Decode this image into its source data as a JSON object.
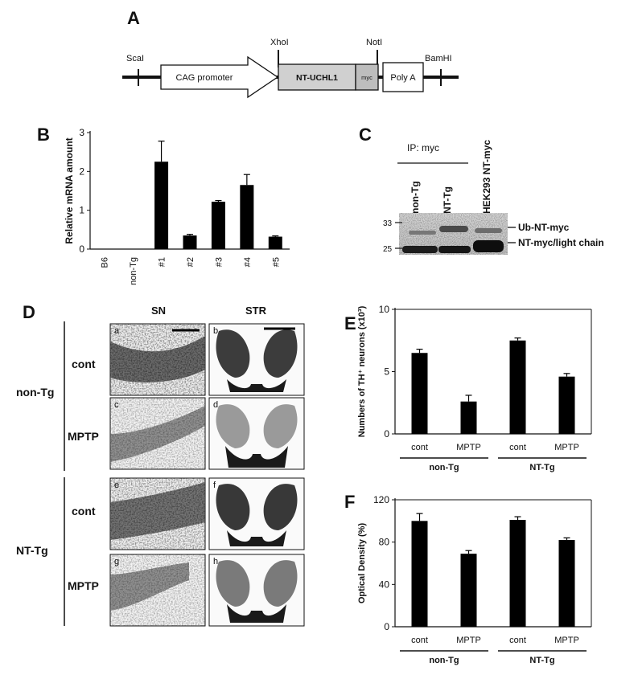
{
  "panel_letters": {
    "A": "A",
    "B": "B",
    "C": "C",
    "D": "D",
    "E": "E",
    "F": "F"
  },
  "construct": {
    "sites": [
      "ScaI",
      "XhoI",
      "NotI",
      "BamHI"
    ],
    "promoter": "CAG promoter",
    "gene": "NT-UCHL1",
    "tag": "myc",
    "polyA": "Poly A"
  },
  "blot": {
    "header": "IP: myc",
    "lanes": [
      "non-Tg",
      "NT-Tg",
      "HEK293 NT-myc"
    ],
    "markers": [
      "33",
      "25"
    ],
    "bands": [
      "Ub-NT-myc",
      "NT-myc/light chain"
    ]
  },
  "histology": {
    "columns": [
      "SN",
      "STR"
    ],
    "groups": [
      "non-Tg",
      "NT-Tg"
    ],
    "treatments": [
      "cont",
      "MPTP",
      "cont",
      "MPTP"
    ],
    "letters": [
      "a",
      "b",
      "c",
      "d",
      "e",
      "f",
      "g",
      "h"
    ]
  },
  "chart_data": [
    {
      "panel": "B",
      "type": "bar",
      "categories": [
        "B6",
        "non-Tg",
        "#1",
        "#2",
        "#3",
        "#4",
        "#5"
      ],
      "values": [
        0,
        0,
        2.25,
        0.35,
        1.22,
        1.65,
        0.32
      ],
      "errors": [
        0,
        0,
        0.53,
        0.03,
        0.03,
        0.27,
        0.02
      ],
      "ylabel": "Relative mRNA amount",
      "ylim": [
        0,
        3
      ],
      "yticks": [
        "0",
        "1",
        "2",
        "3"
      ],
      "grid": false
    },
    {
      "panel": "E",
      "type": "bar",
      "categories": [
        "cont",
        "MPTP",
        "cont",
        "MPTP"
      ],
      "groups": [
        "non-Tg",
        "NT-Tg"
      ],
      "values": [
        6.5,
        2.6,
        7.5,
        4.6
      ],
      "errors": [
        0.3,
        0.5,
        0.2,
        0.25
      ],
      "ylabel": "Numbers of TH⁺ neurons (x10³)",
      "ylim": [
        0,
        10
      ],
      "yticks": [
        "0",
        "5",
        "10"
      ],
      "grid": false
    },
    {
      "panel": "F",
      "type": "bar",
      "categories": [
        "cont",
        "MPTP",
        "cont",
        "MPTP"
      ],
      "groups": [
        "non-Tg",
        "NT-Tg"
      ],
      "values": [
        100,
        69,
        101,
        82
      ],
      "errors": [
        7,
        3,
        3,
        2
      ],
      "ylabel": "Optical Density (%)",
      "ylim": [
        0,
        120
      ],
      "yticks": [
        "0",
        "40",
        "80",
        "120"
      ],
      "grid": false
    }
  ]
}
